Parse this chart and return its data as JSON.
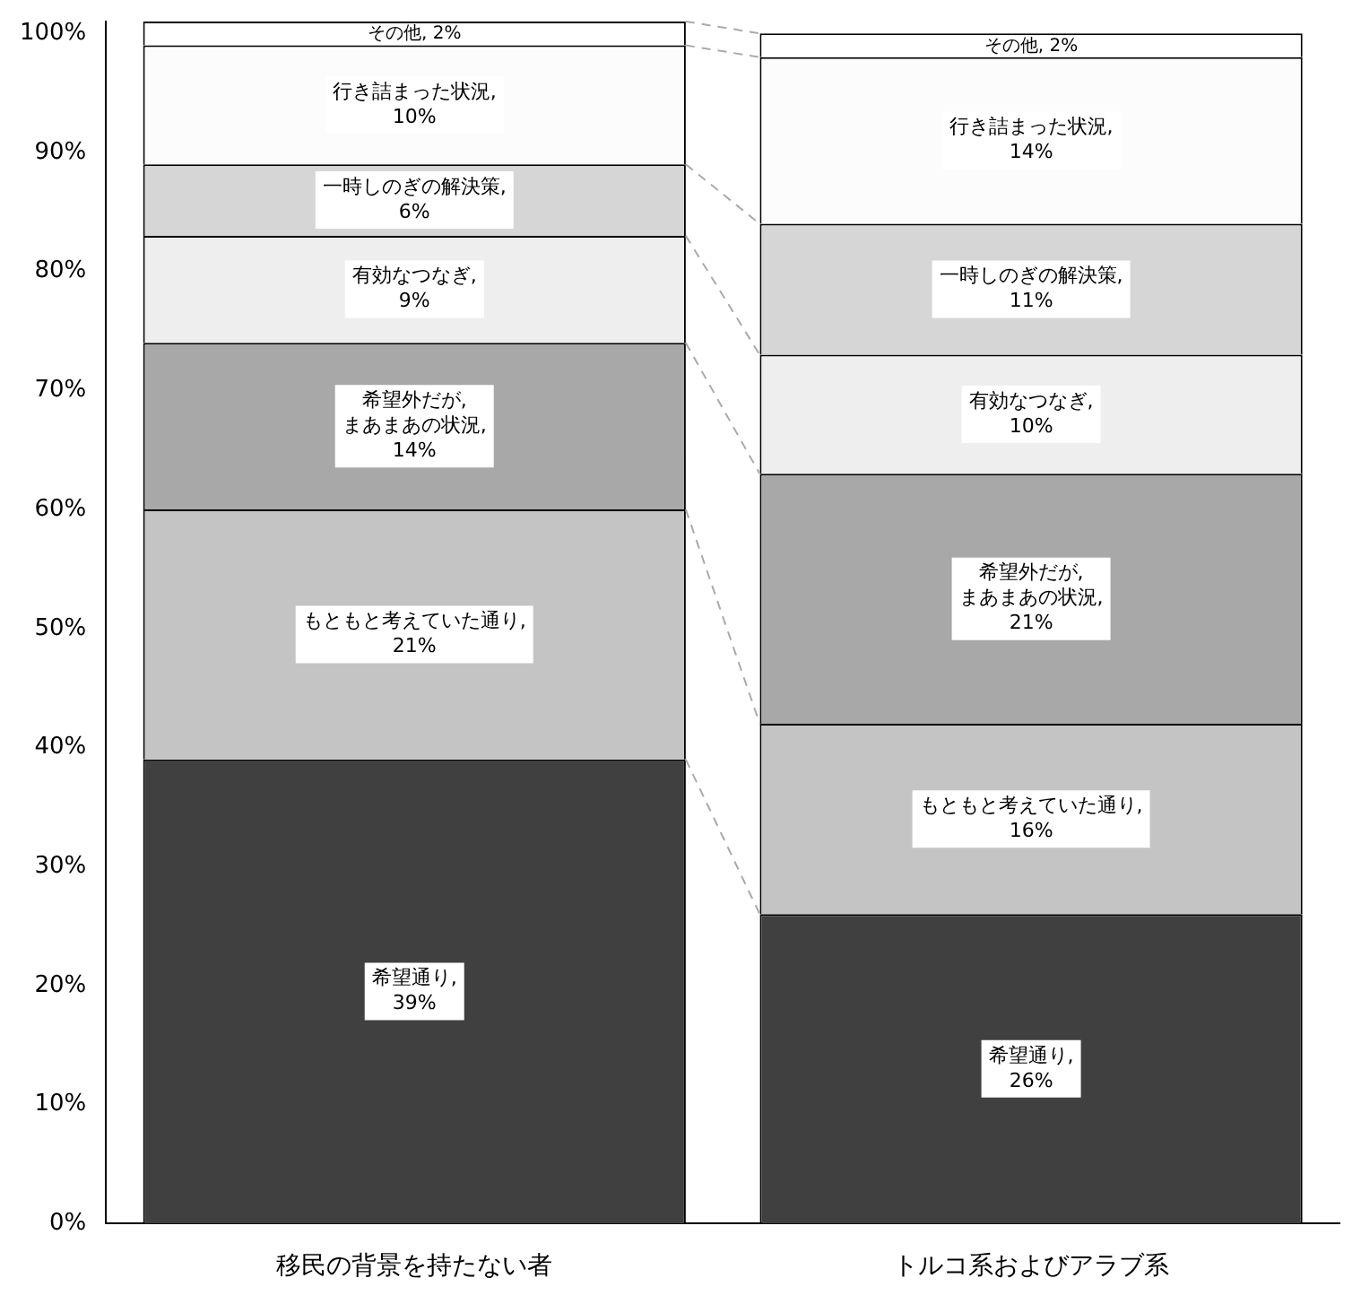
{
  "chart_data": {
    "type": "bar",
    "stacked": true,
    "categories": [
      "移民の背景を持たない者",
      "トルコ系およびアラブ系"
    ],
    "series": [
      {
        "name": "希望通り,",
        "color": "#404040",
        "values": [
          39,
          26
        ],
        "value_labels": [
          "39%",
          "26%"
        ]
      },
      {
        "name": "もともと考えていた通り,",
        "color": "#c4c4c4",
        "values": [
          21,
          16
        ],
        "value_labels": [
          "21%",
          "16%"
        ]
      },
      {
        "name": "希望外だが,\nまあまあの状況,",
        "color": "#a8a8a8",
        "values": [
          14,
          21
        ],
        "value_labels": [
          "14%",
          "21%"
        ]
      },
      {
        "name": "有効なつなぎ,",
        "color": "#eeeeee",
        "values": [
          9,
          10
        ],
        "value_labels": [
          "9%",
          "10%"
        ]
      },
      {
        "name": "一時しのぎの解決策,",
        "color": "#d6d6d6",
        "values": [
          6,
          11
        ],
        "value_labels": [
          "6%",
          "11%"
        ]
      },
      {
        "name": "行き詰まった状況,",
        "color": "#fcfcfc",
        "values": [
          10,
          14
        ],
        "value_labels": [
          "10%",
          "14%"
        ]
      },
      {
        "name": "その他,",
        "color": "#ffffff",
        "values": [
          2,
          2
        ],
        "value_labels": [
          "2%",
          "2%"
        ]
      }
    ],
    "ylim": [
      0,
      101
    ],
    "yticks": [
      {
        "value": 0,
        "label": "0%"
      },
      {
        "value": 10,
        "label": "10%"
      },
      {
        "value": 20,
        "label": "20%"
      },
      {
        "value": 30,
        "label": "30%"
      },
      {
        "value": 40,
        "label": "40%"
      },
      {
        "value": 50,
        "label": "50%"
      },
      {
        "value": 60,
        "label": "60%"
      },
      {
        "value": 70,
        "label": "70%"
      },
      {
        "value": 80,
        "label": "80%"
      },
      {
        "value": 90,
        "label": "90%"
      },
      {
        "value": 100,
        "label": "100%"
      }
    ],
    "grid": false,
    "legend": false
  }
}
